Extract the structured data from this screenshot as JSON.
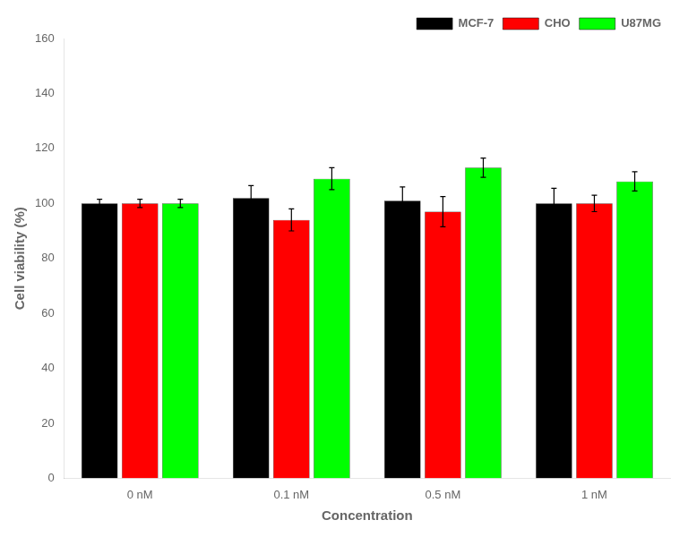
{
  "chart_data": {
    "type": "bar",
    "categories": [
      "0 nM",
      "0.1 nM",
      "0.5 nM",
      "1 nM"
    ],
    "series": [
      {
        "name": "MCF-7",
        "color": "#000000",
        "values": [
          100,
          102,
          101,
          100
        ],
        "errors": [
          1.5,
          4.5,
          5.0,
          5.5
        ]
      },
      {
        "name": "CHO",
        "color": "#ff0000",
        "values": [
          100,
          94,
          97,
          100
        ],
        "errors": [
          1.5,
          4.0,
          5.5,
          3.0
        ]
      },
      {
        "name": "U87MG",
        "color": "#00ff00",
        "values": [
          100,
          109,
          113,
          108
        ],
        "errors": [
          1.5,
          4.0,
          3.5,
          3.5
        ]
      }
    ],
    "xlabel": "Concentration",
    "ylabel": "Cell viability (%)",
    "ylim": [
      0,
      160
    ],
    "yticks": [
      0,
      20,
      40,
      60,
      80,
      100,
      120,
      140,
      160
    ],
    "grid": false,
    "legend": "upper right"
  }
}
